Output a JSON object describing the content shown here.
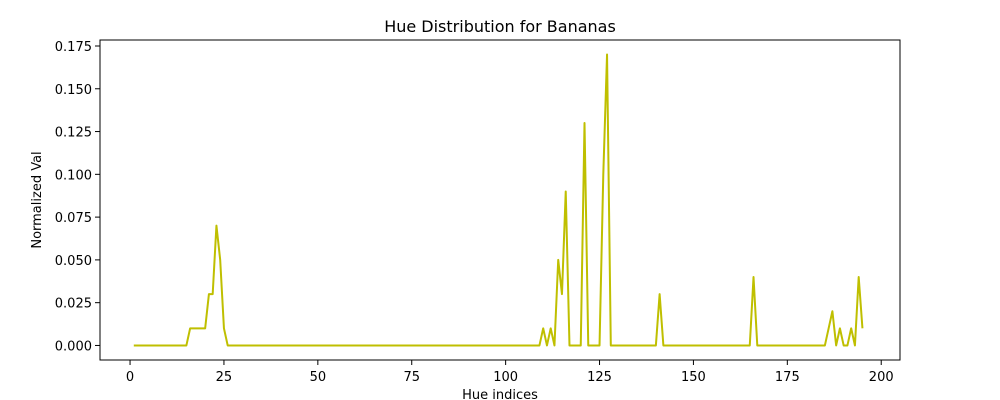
{
  "chart_data": {
    "type": "line",
    "title": "Hue Distribution for Bananas",
    "xlabel": "Hue indices",
    "ylabel": "Normalized Val",
    "xlim": [
      -8,
      205
    ],
    "ylim": [
      -0.0085,
      0.1785
    ],
    "xticks": [
      0,
      25,
      50,
      75,
      100,
      125,
      150,
      175,
      200
    ],
    "yticks": [
      0.0,
      0.025,
      0.05,
      0.075,
      0.1,
      0.125,
      0.15,
      0.175
    ],
    "ytick_labels": [
      "0.000",
      "0.025",
      "0.050",
      "0.075",
      "0.100",
      "0.125",
      "0.150",
      "0.175"
    ],
    "grid": false,
    "line_color": "#bfbf00",
    "series": [
      {
        "x": [
          1,
          15,
          16,
          17,
          18,
          19,
          20,
          21,
          22,
          23,
          24,
          25,
          26,
          109,
          110,
          111,
          112,
          113,
          114,
          115,
          116,
          117,
          118,
          119,
          120,
          121,
          122,
          123,
          124,
          125,
          126,
          127,
          128,
          140,
          141,
          142,
          165,
          166,
          167,
          185,
          186,
          187,
          188,
          189,
          190,
          191,
          192,
          193,
          194,
          195
        ],
        "y": [
          0,
          0,
          0.01,
          0.01,
          0.01,
          0.01,
          0.01,
          0.03,
          0.03,
          0.07,
          0.05,
          0.01,
          0,
          0,
          0.01,
          0,
          0.01,
          0,
          0.05,
          0.03,
          0.09,
          0,
          0,
          0,
          0,
          0.13,
          0,
          0,
          0,
          0,
          0.1,
          0.17,
          0,
          0,
          0.03,
          0,
          0,
          0.04,
          0,
          0,
          0.01,
          0.02,
          0,
          0.01,
          0,
          0,
          0.01,
          0,
          0.04,
          0.01
        ]
      }
    ]
  }
}
